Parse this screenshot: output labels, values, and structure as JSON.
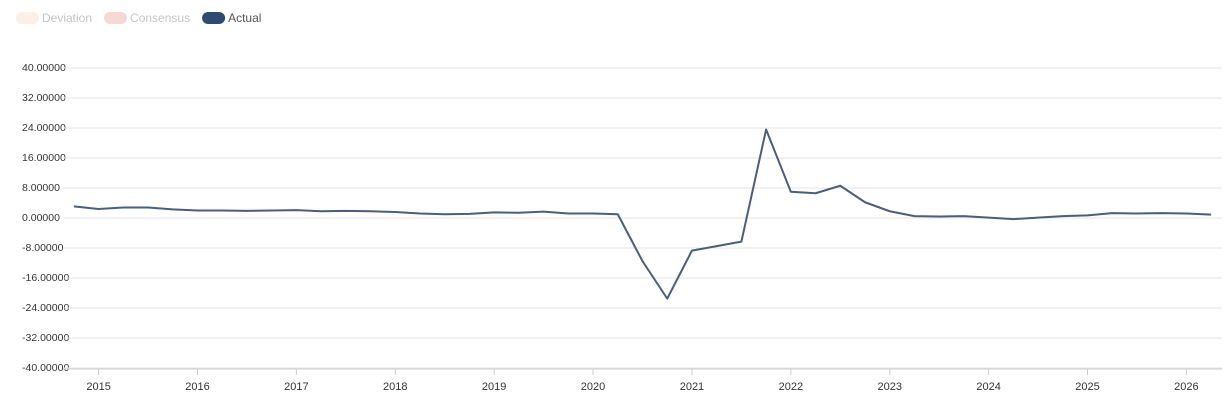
{
  "chart_data": {
    "type": "line",
    "legend": [
      {
        "name": "Deviation",
        "color": "#fbefe6",
        "hidden": true
      },
      {
        "name": "Consensus",
        "color": "#f6d8d5",
        "hidden": true
      }
    ],
    "x": [
      2014.75,
      2015.0,
      2015.25,
      2015.5,
      2015.75,
      2016.0,
      2016.25,
      2016.5,
      2016.75,
      2017.0,
      2017.25,
      2017.5,
      2017.75,
      2018.0,
      2018.25,
      2018.5,
      2018.75,
      2019.0,
      2019.25,
      2019.5,
      2019.75,
      2020.0,
      2020.25,
      2020.5,
      2020.75,
      2021.0,
      2021.25,
      2021.5,
      2021.75,
      2022.0,
      2022.25,
      2022.5,
      2022.75,
      2023.0,
      2023.25,
      2023.5,
      2023.75,
      2024.0,
      2024.25,
      2024.5,
      2024.75,
      2025.0,
      2025.25,
      2025.5,
      2025.75,
      2026.0,
      2026.25
    ],
    "series": [
      {
        "name": "Actual",
        "color": "#4a5f7a",
        "legend_color": "#2e4a6f",
        "values": [
          3.1,
          2.4,
          2.8,
          2.8,
          2.3,
          2.0,
          2.0,
          1.9,
          2.0,
          2.1,
          1.8,
          1.9,
          1.8,
          1.6,
          1.2,
          1.0,
          1.1,
          1.5,
          1.4,
          1.7,
          1.2,
          1.2,
          1.0,
          -11.5,
          -21.5,
          -8.7,
          -7.5,
          -6.3,
          23.6,
          7.0,
          6.6,
          8.6,
          4.2,
          1.8,
          0.5,
          0.4,
          0.5,
          0.1,
          -0.3,
          0.1,
          0.5,
          0.7,
          1.3,
          1.2,
          1.3,
          1.2,
          0.9
        ]
      }
    ],
    "xlim": [
      2014.64,
      2026.36
    ],
    "xticks": [
      2015,
      2016,
      2017,
      2018,
      2019,
      2020,
      2021,
      2022,
      2023,
      2024,
      2025,
      2026
    ],
    "ylim": [
      -40,
      40
    ],
    "yticks": [
      {
        "value": 40,
        "label": "40.00000"
      },
      {
        "value": 32,
        "label": "32.00000"
      },
      {
        "value": 24,
        "label": "24.00000"
      },
      {
        "value": 16,
        "label": "16.00000"
      },
      {
        "value": 8,
        "label": "8.00000"
      },
      {
        "value": 0,
        "label": "0.00000"
      },
      {
        "value": -8,
        "label": "-8.00000"
      },
      {
        "value": -16,
        "label": "-16.00000"
      },
      {
        "value": -24,
        "label": "-24.00000"
      },
      {
        "value": -32,
        "label": "-32.00000"
      },
      {
        "value": -40,
        "label": "-40.00000"
      }
    ],
    "grid": true
  }
}
